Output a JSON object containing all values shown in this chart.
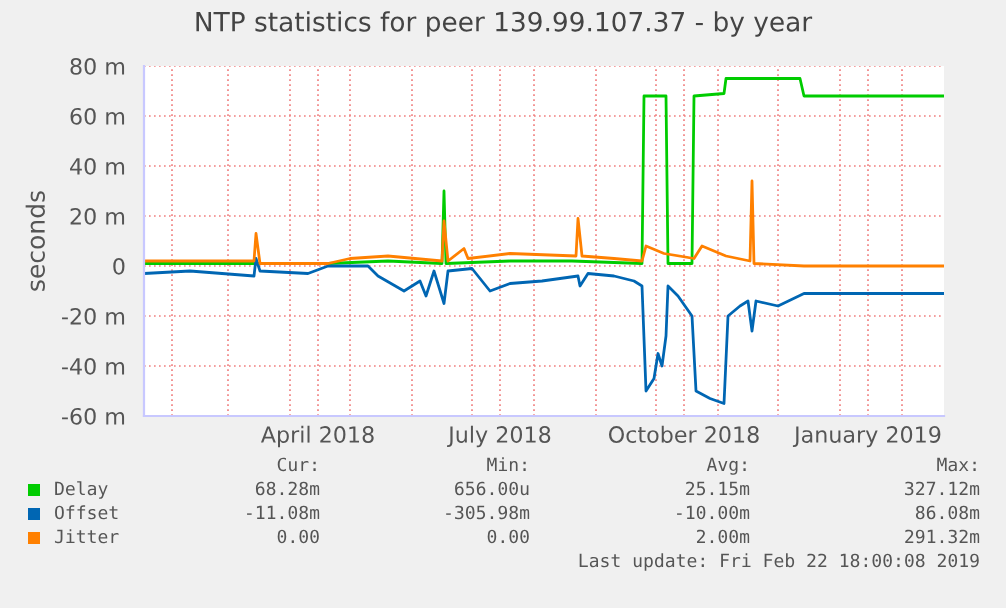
{
  "chart_data": {
    "type": "line",
    "title": "NTP statistics for peer 139.99.107.37 - by year",
    "ylabel": "seconds",
    "xlim": [
      "2018-01-18",
      "2019-02-22"
    ],
    "xticks": [
      {
        "value": "2018-02-01",
        "label": null
      },
      {
        "value": "2018-03-01",
        "label": null
      },
      {
        "value": "2018-04-01",
        "label": null
      },
      {
        "value": "2018-04-15",
        "label": "April 2018"
      },
      {
        "value": "2018-05-01",
        "label": null
      },
      {
        "value": "2018-06-01",
        "label": null
      },
      {
        "value": "2018-07-01",
        "label": null
      },
      {
        "value": "2018-07-15",
        "label": "July 2018"
      },
      {
        "value": "2018-08-01",
        "label": null
      },
      {
        "value": "2018-09-01",
        "label": null
      },
      {
        "value": "2018-10-01",
        "label": null
      },
      {
        "value": "2018-10-15",
        "label": "October 2018"
      },
      {
        "value": "2018-11-01",
        "label": null
      },
      {
        "value": "2018-12-01",
        "label": null
      },
      {
        "value": "2019-01-01",
        "label": null
      },
      {
        "value": "2019-01-15",
        "label": "January 2019"
      },
      {
        "value": "2019-02-01",
        "label": null
      }
    ],
    "ylim": [
      -60,
      80
    ],
    "yticks": [
      {
        "value": -60,
        "label": "-60 m"
      },
      {
        "value": -40,
        "label": "-40 m"
      },
      {
        "value": -20,
        "label": "-20 m"
      },
      0,
      {
        "value": 20,
        "label": "20 m"
      },
      {
        "value": 40,
        "label": "40 m"
      },
      {
        "value": 60,
        "label": "60 m"
      },
      {
        "value": 80,
        "label": "80 m"
      }
    ],
    "grid": true,
    "legend": "bottom",
    "series": [
      {
        "name": "Delay",
        "color": "#00cc00",
        "x": [
          "2018-01-18",
          "2018-03-15",
          "2018-04-20",
          "2018-05-20",
          "2018-06-16",
          "2018-06-17",
          "2018-06-18",
          "2018-07-20",
          "2018-08-20",
          "2018-09-24",
          "2018-09-25",
          "2018-10-06",
          "2018-10-07",
          "2018-10-19",
          "2018-10-20",
          "2018-11-04",
          "2018-11-05",
          "2018-12-12",
          "2018-12-14",
          "2019-02-22"
        ],
        "values": [
          1,
          1,
          1,
          2,
          1,
          30,
          1,
          2,
          2,
          1,
          68,
          68,
          1,
          1,
          68,
          69,
          75,
          75,
          68,
          68
        ]
      },
      {
        "name": "Offset",
        "color": "#0066b3",
        "x": [
          "2018-01-18",
          "2018-02-10",
          "2018-03-14",
          "2018-03-15",
          "2018-03-17",
          "2018-04-10",
          "2018-04-20",
          "2018-05-10",
          "2018-05-15",
          "2018-05-28",
          "2018-06-05",
          "2018-06-08",
          "2018-06-12",
          "2018-06-17",
          "2018-06-19",
          "2018-07-01",
          "2018-07-10",
          "2018-07-20",
          "2018-08-05",
          "2018-08-23",
          "2018-08-24",
          "2018-08-28",
          "2018-09-10",
          "2018-09-20",
          "2018-09-24",
          "2018-09-26",
          "2018-09-30",
          "2018-10-02",
          "2018-10-04",
          "2018-10-06",
          "2018-10-07",
          "2018-10-12",
          "2018-10-19",
          "2018-10-21",
          "2018-10-28",
          "2018-11-04",
          "2018-11-06",
          "2018-11-12",
          "2018-11-16",
          "2018-11-18",
          "2018-11-20",
          "2018-12-01",
          "2018-12-14",
          "2019-02-22"
        ],
        "values": [
          -3,
          -2,
          -4,
          3,
          -2,
          -3,
          0,
          0,
          -4,
          -10,
          -6,
          -12,
          -2,
          -15,
          -2,
          -1,
          -10,
          -7,
          -6,
          -4,
          -8,
          -3,
          -4,
          -6,
          -8,
          -50,
          -45,
          -35,
          -40,
          -28,
          -8,
          -12,
          -20,
          -50,
          -53,
          -55,
          -20,
          -16,
          -14,
          -26,
          -14,
          -16,
          -11,
          -11
        ]
      },
      {
        "name": "Jitter",
        "color": "#ff8000",
        "x": [
          "2018-01-18",
          "2018-03-14",
          "2018-03-15",
          "2018-03-17",
          "2018-04-20",
          "2018-05-01",
          "2018-05-20",
          "2018-06-16",
          "2018-06-17",
          "2018-06-19",
          "2018-06-27",
          "2018-06-29",
          "2018-07-20",
          "2018-08-22",
          "2018-08-23",
          "2018-08-25",
          "2018-09-10",
          "2018-09-24",
          "2018-09-26",
          "2018-10-05",
          "2018-10-20",
          "2018-10-24",
          "2018-11-05",
          "2018-11-17",
          "2018-11-18",
          "2018-11-19",
          "2018-12-14",
          "2019-02-22"
        ],
        "values": [
          2,
          2,
          13,
          1,
          1,
          3,
          4,
          2,
          18,
          2,
          7,
          3,
          5,
          4,
          19,
          4,
          3,
          2,
          8,
          5,
          3,
          8,
          4,
          2,
          34,
          1,
          0,
          0
        ]
      }
    ],
    "annotations": [
      "Cur:",
      "Min:",
      "Avg:",
      "Max:",
      "68.28m",
      "656.00u",
      "25.15m",
      "327.12m",
      "-11.08m",
      "-305.98m",
      "-10.00m",
      "86.08m",
      "0.00",
      "0.00",
      "2.00m",
      "291.32m",
      "Last update: Fri Feb 22 18:00:08 2019"
    ]
  }
}
